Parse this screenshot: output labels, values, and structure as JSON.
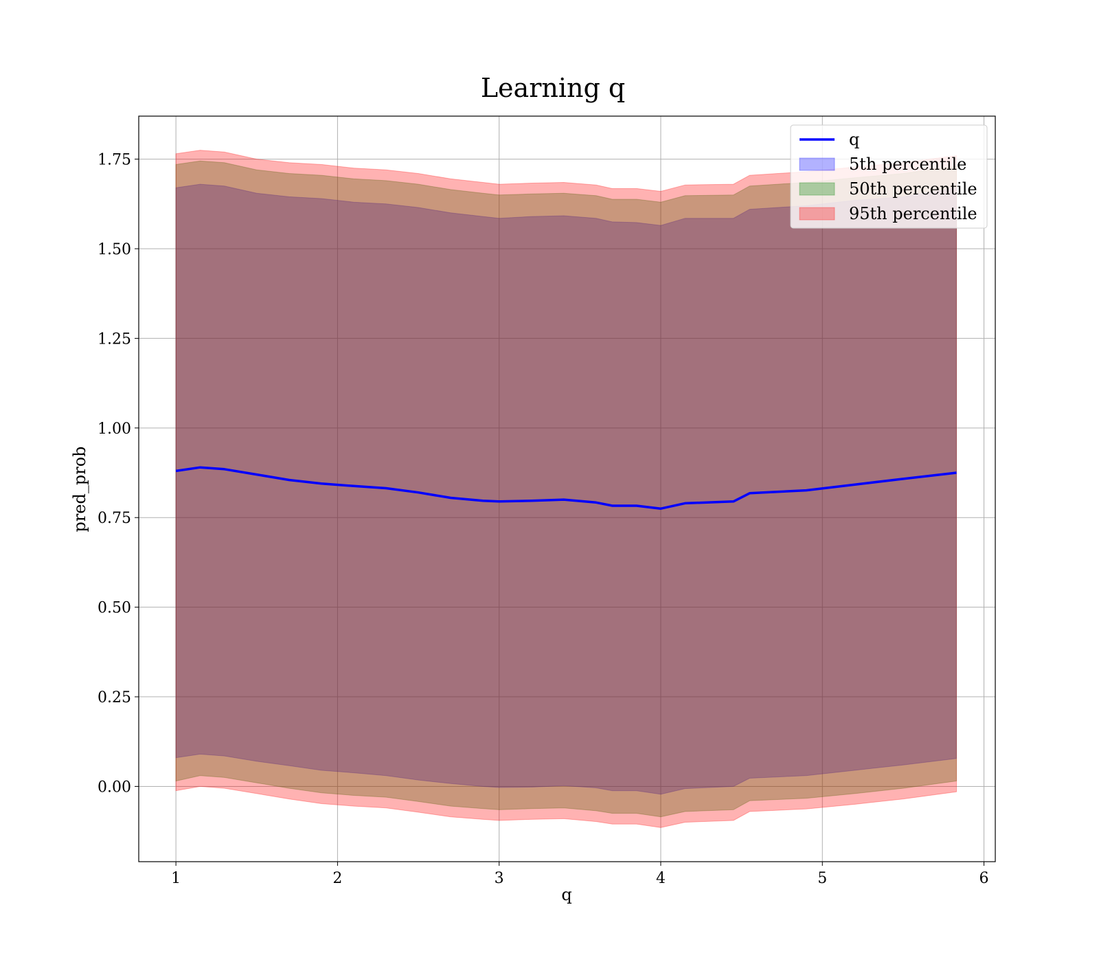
{
  "chart_data": {
    "type": "line",
    "title": "Learning q",
    "xlabel": "q",
    "ylabel": "pred_prob",
    "xlim": [
      0.77,
      6.07
    ],
    "ylim": [
      -0.21,
      1.87
    ],
    "xticks": [
      1,
      2,
      3,
      4,
      5,
      6
    ],
    "xtick_labels": [
      "1",
      "2",
      "3",
      "4",
      "5",
      "6"
    ],
    "yticks": [
      0.0,
      0.25,
      0.5,
      0.75,
      1.0,
      1.25,
      1.5,
      1.75
    ],
    "ytick_labels": [
      "0.00",
      "0.25",
      "0.50",
      "0.75",
      "1.00",
      "1.25",
      "1.50",
      "1.75"
    ],
    "grid": true,
    "legend_position": "top-right",
    "x": [
      1.0,
      1.15,
      1.3,
      1.5,
      1.7,
      1.9,
      2.1,
      2.3,
      2.5,
      2.7,
      2.9,
      3.0,
      3.2,
      3.4,
      3.6,
      3.7,
      3.85,
      4.0,
      4.15,
      4.45,
      4.55,
      4.9,
      5.2,
      5.5,
      5.83
    ],
    "series": [
      {
        "name": "q",
        "kind": "line",
        "color": "#0000ff",
        "values": [
          0.88,
          0.89,
          0.885,
          0.87,
          0.855,
          0.845,
          0.838,
          0.832,
          0.82,
          0.805,
          0.797,
          0.795,
          0.797,
          0.8,
          0.792,
          0.783,
          0.783,
          0.775,
          0.79,
          0.795,
          0.818,
          0.826,
          0.842,
          0.858,
          0.875
        ]
      },
      {
        "name": "5th percentile",
        "kind": "band",
        "color": "#0000ff",
        "lower": [
          0.08,
          0.09,
          0.085,
          0.07,
          0.058,
          0.045,
          0.038,
          0.03,
          0.018,
          0.008,
          0.0,
          -0.003,
          -0.002,
          0.002,
          -0.004,
          -0.012,
          -0.012,
          -0.022,
          -0.006,
          0.0,
          0.023,
          0.03,
          0.045,
          0.06,
          0.078
        ],
        "upper": [
          1.67,
          1.68,
          1.675,
          1.655,
          1.645,
          1.64,
          1.63,
          1.625,
          1.615,
          1.6,
          1.59,
          1.585,
          1.59,
          1.592,
          1.585,
          1.575,
          1.573,
          1.565,
          1.585,
          1.585,
          1.61,
          1.62,
          1.635,
          1.645,
          1.67
        ]
      },
      {
        "name": "50th percentile",
        "kind": "band",
        "color": "#008000",
        "lower": [
          0.015,
          0.03,
          0.025,
          0.01,
          -0.005,
          -0.018,
          -0.025,
          -0.03,
          -0.042,
          -0.055,
          -0.062,
          -0.065,
          -0.062,
          -0.06,
          -0.068,
          -0.075,
          -0.075,
          -0.085,
          -0.07,
          -0.065,
          -0.04,
          -0.033,
          -0.02,
          -0.005,
          0.015
        ],
        "upper": [
          1.735,
          1.745,
          1.74,
          1.72,
          1.71,
          1.705,
          1.695,
          1.69,
          1.68,
          1.665,
          1.655,
          1.65,
          1.653,
          1.655,
          1.648,
          1.638,
          1.638,
          1.63,
          1.648,
          1.65,
          1.675,
          1.685,
          1.698,
          1.71,
          1.73
        ]
      },
      {
        "name": "95th percentile",
        "kind": "band",
        "color": "#ff0000",
        "lower": [
          -0.012,
          0.0,
          -0.005,
          -0.02,
          -0.035,
          -0.048,
          -0.055,
          -0.06,
          -0.072,
          -0.085,
          -0.092,
          -0.095,
          -0.092,
          -0.09,
          -0.098,
          -0.105,
          -0.105,
          -0.115,
          -0.1,
          -0.095,
          -0.07,
          -0.063,
          -0.05,
          -0.035,
          -0.015
        ],
        "upper": [
          1.765,
          1.775,
          1.77,
          1.75,
          1.74,
          1.735,
          1.725,
          1.72,
          1.71,
          1.695,
          1.685,
          1.68,
          1.683,
          1.685,
          1.678,
          1.668,
          1.668,
          1.66,
          1.678,
          1.68,
          1.705,
          1.715,
          1.728,
          1.74,
          1.76
        ]
      }
    ]
  }
}
